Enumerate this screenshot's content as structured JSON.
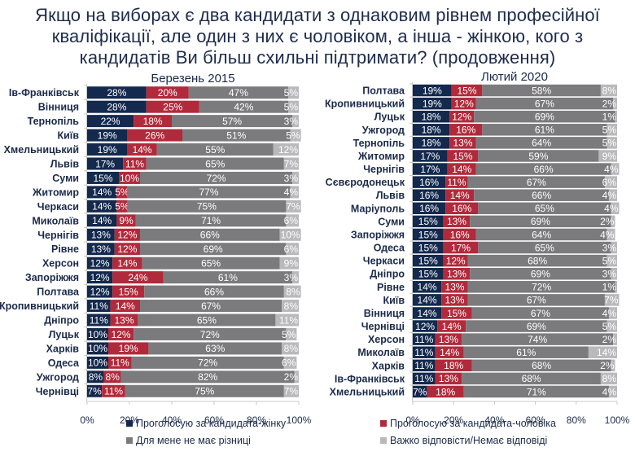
{
  "title_lines": [
    "Якщо на виборах є два кандидати з однаковим рівнем професійної",
    "кваліфікації, але один з них є чоловіком, а інша - жінкою, кого з",
    "кандидатів Ви більш схильні підтримати? (продовження)"
  ],
  "colors": {
    "female": "#13294d",
    "male": "#b12a3b",
    "no_difference": "#7b7b7d",
    "hard_to_say": "#b9b9bb"
  },
  "legend": [
    {
      "key": "female",
      "label": "Проголосую за кандидата-жінку"
    },
    {
      "key": "male",
      "label": "Проголосую за кандидата-чоловіка"
    },
    {
      "key": "no_difference",
      "label": "Для мене не має різниці"
    },
    {
      "key": "hard_to_say",
      "label": "Важко відповісти/Немає відповіді"
    }
  ],
  "chart_data": [
    {
      "type": "bar",
      "orientation": "horizontal-stacked-100",
      "title": "Березень 2015",
      "xlim": [
        0,
        100
      ],
      "xticks": [
        "0%",
        "20%",
        "40%",
        "60%",
        "80%",
        "100%"
      ],
      "series_keys": [
        "female",
        "male",
        "no_difference",
        "hard_to_say"
      ],
      "categories": [
        "Ів-Франківськ",
        "Вінниця",
        "Тернопіль",
        "Київ",
        "Хмельницький",
        "Львів",
        "Суми",
        "Житомир",
        "Черкаси",
        "Миколаїв",
        "Чернігів",
        "Рівне",
        "Херсон",
        "Запоріжжя",
        "Полтава",
        "Кропивницький",
        "Дніпро",
        "Луцьк",
        "Харків",
        "Одеса",
        "Ужгород",
        "Чернівці"
      ],
      "series": [
        {
          "name": "Проголосую за кандидата-жінку",
          "values": [
            28,
            28,
            22,
            19,
            19,
            17,
            15,
            14,
            14,
            14,
            13,
            13,
            12,
            12,
            12,
            11,
            11,
            10,
            10,
            10,
            8,
            7
          ]
        },
        {
          "name": "Проголосую за кандидата-чоловіка",
          "values": [
            20,
            25,
            18,
            26,
            14,
            11,
            10,
            5,
            5,
            9,
            12,
            12,
            14,
            24,
            15,
            14,
            13,
            12,
            19,
            11,
            8,
            11
          ]
        },
        {
          "name": "Для мене не має різниці",
          "values": [
            47,
            42,
            57,
            51,
            55,
            65,
            72,
            77,
            75,
            71,
            66,
            69,
            65,
            61,
            66,
            67,
            65,
            72,
            63,
            72,
            82,
            75
          ]
        },
        {
          "name": "Важко відповісти/Немає відповіді",
          "values": [
            5,
            5,
            3,
            5,
            12,
            7,
            3,
            4,
            7,
            6,
            10,
            6,
            9,
            3,
            8,
            8,
            11,
            5,
            8,
            6,
            2,
            7
          ]
        }
      ]
    },
    {
      "type": "bar",
      "orientation": "horizontal-stacked-100",
      "title": "Лютий 2020",
      "xlim": [
        0,
        100
      ],
      "xticks": [
        "0%",
        "20%",
        "40%",
        "60%",
        "80%",
        "100%"
      ],
      "series_keys": [
        "female",
        "male",
        "no_difference",
        "hard_to_say"
      ],
      "categories": [
        "Полтава",
        "Кропивницький",
        "Луцьк",
        "Ужгород",
        "Тернопіль",
        "Житомир",
        "Чернігів",
        "Сєвєродонецьк",
        "Львів",
        "Маріуполь",
        "Суми",
        "Запоріжжя",
        "Одеса",
        "Черкаси",
        "Дніпро",
        "Рівне",
        "Київ",
        "Вінниця",
        "Чернівці",
        "Херсон",
        "Миколаїв",
        "Харків",
        "Ів-Франківськ",
        "Хмельницький"
      ],
      "series": [
        {
          "name": "Проголосую за кандидата-жінку",
          "values": [
            19,
            19,
            18,
            18,
            18,
            17,
            17,
            16,
            16,
            16,
            15,
            15,
            15,
            15,
            15,
            14,
            14,
            14,
            12,
            11,
            11,
            11,
            11,
            7
          ]
        },
        {
          "name": "Проголосую за кандидата-чоловіка",
          "values": [
            15,
            12,
            12,
            16,
            13,
            15,
            14,
            11,
            14,
            16,
            13,
            16,
            17,
            12,
            13,
            13,
            13,
            15,
            14,
            13,
            14,
            18,
            13,
            18
          ]
        },
        {
          "name": "Для мене не має різниці",
          "values": [
            58,
            67,
            69,
            61,
            64,
            59,
            66,
            67,
            66,
            65,
            69,
            64,
            65,
            68,
            69,
            72,
            67,
            67,
            69,
            74,
            61,
            68,
            68,
            71
          ]
        },
        {
          "name": "Важко відповісти/Немає відповіді",
          "values": [
            8,
            2,
            1,
            5,
            5,
            9,
            4,
            6,
            4,
            4,
            2,
            4,
            3,
            5,
            3,
            1,
            7,
            4,
            5,
            2,
            14,
            2,
            8,
            4
          ]
        }
      ]
    }
  ]
}
